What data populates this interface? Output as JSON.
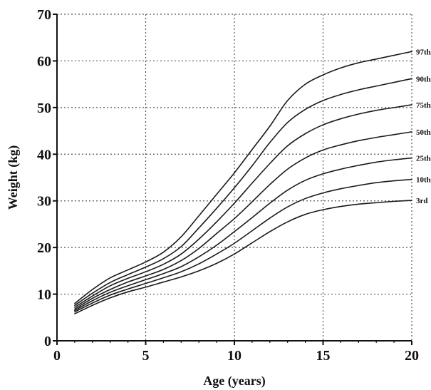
{
  "chart_data": {
    "type": "line",
    "title": "",
    "xlabel": "Age (years)",
    "ylabel": "Weight (kg)",
    "xlim": [
      0,
      20
    ],
    "ylim": [
      0,
      70
    ],
    "xticks": [
      0,
      5,
      10,
      15,
      20
    ],
    "yticks": [
      0,
      10,
      20,
      30,
      40,
      50,
      60,
      70
    ],
    "grid": true,
    "legend": "labels at right end of each line",
    "x": [
      1,
      2,
      3,
      4,
      5,
      6,
      7,
      8,
      9,
      10,
      11,
      12,
      13,
      14,
      15,
      16,
      17,
      18,
      19,
      20
    ],
    "series": [
      {
        "name": "97th",
        "values": [
          8.0,
          11.0,
          13.5,
          15.2,
          16.9,
          19.0,
          22.3,
          26.8,
          31.4,
          36.0,
          41.0,
          46.0,
          51.5,
          55.0,
          57.0,
          58.5,
          59.6,
          60.4,
          61.2,
          62.0
        ]
      },
      {
        "name": "90th",
        "values": [
          7.6,
          10.2,
          12.5,
          14.2,
          15.8,
          17.6,
          20.2,
          24.2,
          28.4,
          32.8,
          37.5,
          42.5,
          46.8,
          49.6,
          51.5,
          52.8,
          53.8,
          54.6,
          55.4,
          56.2
        ]
      },
      {
        "name": "75th",
        "values": [
          7.2,
          9.6,
          11.8,
          13.4,
          14.8,
          16.4,
          18.6,
          21.8,
          25.5,
          29.5,
          33.8,
          38.0,
          41.8,
          44.4,
          46.3,
          47.6,
          48.6,
          49.4,
          50.0,
          50.6
        ]
      },
      {
        "name": "50th",
        "values": [
          6.8,
          9.1,
          11.0,
          12.6,
          13.9,
          15.3,
          17.2,
          19.8,
          23.0,
          26.2,
          29.8,
          33.5,
          36.8,
          39.2,
          40.9,
          42.0,
          42.9,
          43.6,
          44.2,
          44.8
        ]
      },
      {
        "name": "25th",
        "values": [
          6.5,
          8.6,
          10.4,
          11.8,
          13.1,
          14.4,
          15.9,
          18.0,
          20.5,
          23.4,
          26.4,
          29.5,
          32.3,
          34.4,
          35.8,
          36.8,
          37.6,
          38.3,
          38.8,
          39.2
        ]
      },
      {
        "name": "10th",
        "values": [
          6.2,
          8.1,
          9.8,
          11.1,
          12.3,
          13.5,
          14.8,
          16.5,
          18.6,
          20.9,
          23.6,
          26.3,
          28.7,
          30.5,
          31.7,
          32.6,
          33.3,
          33.9,
          34.3,
          34.6
        ]
      },
      {
        "name": "3rd",
        "values": [
          5.8,
          7.6,
          9.2,
          10.5,
          11.5,
          12.6,
          13.7,
          15.0,
          16.6,
          18.6,
          21.0,
          23.4,
          25.5,
          27.1,
          28.1,
          28.8,
          29.3,
          29.6,
          29.9,
          30.1
        ]
      }
    ],
    "series_labels": [
      "97th",
      "90th",
      "75th",
      "50th",
      "25th",
      "10th",
      "3rd"
    ]
  }
}
